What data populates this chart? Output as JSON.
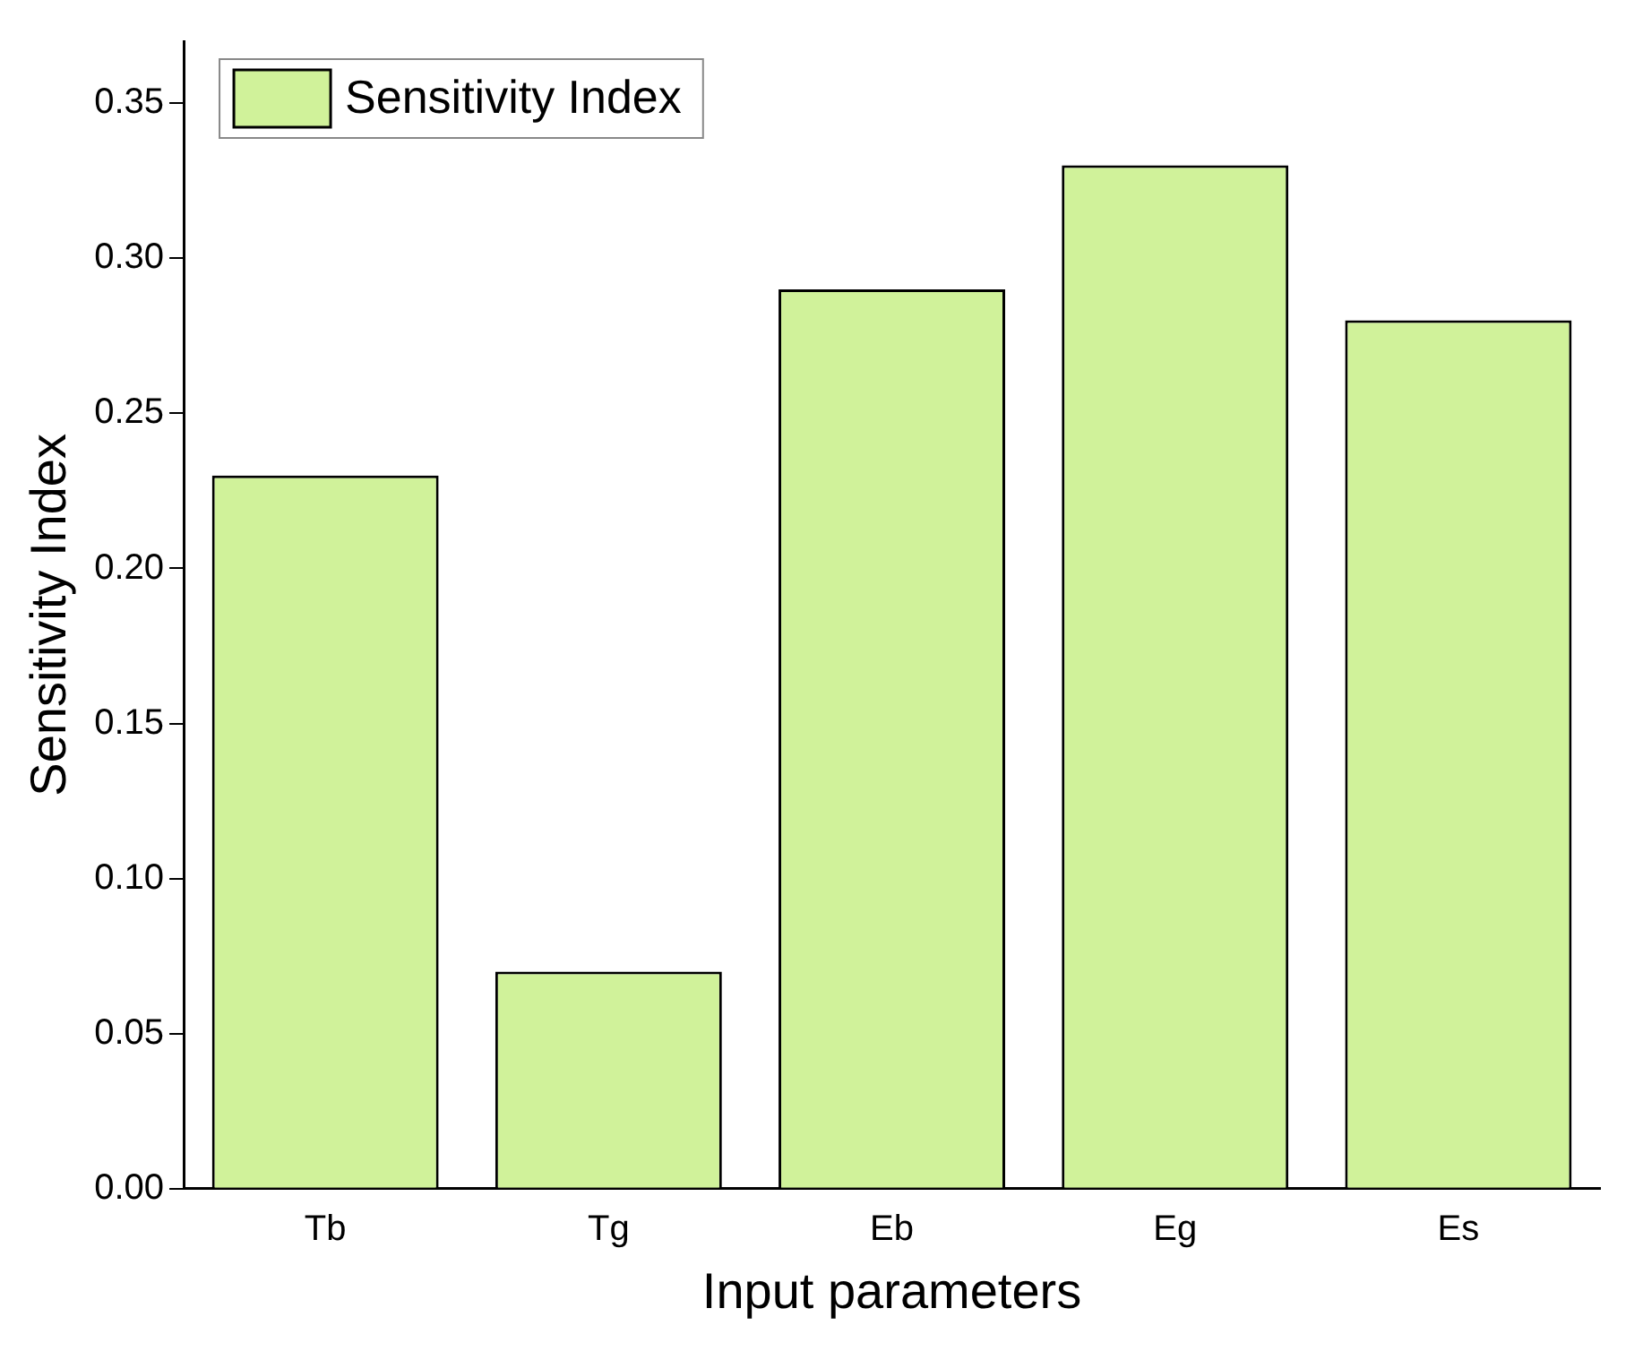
{
  "chart_data": {
    "type": "bar",
    "xlabel": "Input parameters",
    "ylabel": "Sensitivity Index",
    "categories": [
      "Tb",
      "Tg",
      "Eb",
      "Eg",
      "Es"
    ],
    "series": [
      {
        "name": "Sensitivity Index",
        "color": "#d0f29a",
        "values": [
          0.23,
          0.07,
          0.29,
          0.33,
          0.28
        ]
      }
    ],
    "ylim": [
      0,
      0.37
    ],
    "yticks": [
      {
        "value": 0,
        "label": "0.00"
      },
      {
        "value": 0.05,
        "label": "0.05"
      },
      {
        "value": 0.1,
        "label": "0.10"
      },
      {
        "value": 0.15,
        "label": "0.15"
      },
      {
        "value": 0.2,
        "label": "0.20"
      },
      {
        "value": 0.25,
        "label": "0.25"
      },
      {
        "value": 0.3,
        "label": "0.30"
      },
      {
        "value": 0.35,
        "label": "0.35"
      }
    ],
    "grid": false,
    "legend": "top left"
  }
}
